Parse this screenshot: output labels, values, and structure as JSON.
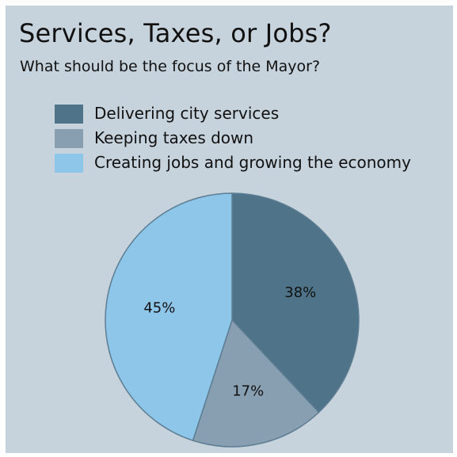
{
  "chart_data": {
    "type": "pie",
    "title": "Services, Taxes, or Jobs?",
    "subtitle": "What should be the focus of the Mayor?",
    "legend_position": "top-left",
    "slices": [
      {
        "label": "Delivering city services",
        "value": 38,
        "value_label": "38%",
        "color": "#4f7389"
      },
      {
        "label": "Keeping taxes down",
        "value": 17,
        "value_label": "17%",
        "color": "#889fb1"
      },
      {
        "label": "Creating jobs and growing the economy",
        "value": 45,
        "value_label": "45%",
        "color": "#8ec6ea"
      }
    ]
  }
}
